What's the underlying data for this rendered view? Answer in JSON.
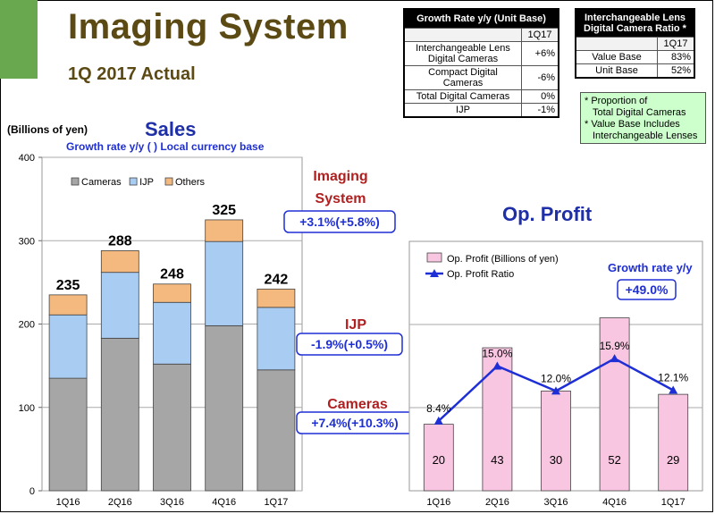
{
  "header": {
    "title": "Imaging System",
    "subtitle": "1Q 2017 Actual"
  },
  "growth_table": {
    "title": "Growth Rate y/y  (Unit Base)",
    "period": "1Q17",
    "rows": [
      {
        "label": "Interchangeable Lens Digital Cameras",
        "value": "+6%"
      },
      {
        "label": "Compact Digital Cameras",
        "value": "-6%"
      },
      {
        "label": "Total Digital Cameras",
        "value": "0%"
      },
      {
        "label": "IJP",
        "value": "-1%"
      }
    ]
  },
  "ratio_table": {
    "title": "Interchangeable Lens Digital Camera Ratio *",
    "period": "1Q17",
    "rows": [
      {
        "label": "Value Base",
        "value": "83%"
      },
      {
        "label": "Unit Base",
        "value": "52%"
      }
    ]
  },
  "note": {
    "line1": "* Proportion of",
    "line2": "Total Digital Cameras",
    "line3": "* Value Base Includes",
    "line4": "Interchangeable Lenses"
  },
  "chart_data": [
    {
      "type": "bar",
      "stacked": true,
      "title": "Sales",
      "unit_label": "(Billions of yen)",
      "subtitle": "Growth rate y/y  ( ) Local currency base",
      "categories": [
        "1Q16",
        "2Q16",
        "3Q16",
        "4Q16",
        "1Q17"
      ],
      "series": [
        {
          "name": "Cameras",
          "values": [
            135,
            183,
            152,
            198,
            145
          ]
        },
        {
          "name": "IJP",
          "values": [
            76,
            79,
            74,
            101,
            75
          ]
        },
        {
          "name": "Others",
          "values": [
            24,
            26,
            22,
            26,
            22
          ]
        }
      ],
      "totals": [
        "235",
        "288",
        "248",
        "325",
        "242"
      ],
      "ylim": [
        0,
        400
      ],
      "yticks": [
        "0",
        "100",
        "200",
        "300",
        "400"
      ],
      "grid": true,
      "legend": "top-left",
      "colors": {
        "Cameras": "#a6a6a6",
        "IJP": "#a9cdf2",
        "Others": "#f4b97e"
      },
      "annotations": [
        {
          "label": "Imaging System",
          "value": "+3.1%(+5.8%)"
        },
        {
          "label": "IJP",
          "value": "-1.9%(+0.5%)"
        },
        {
          "label": "Cameras",
          "value": "+7.4%(+10.3%)"
        }
      ]
    },
    {
      "type": "bar",
      "title": "Op. Profit",
      "categories": [
        "1Q16",
        "2Q16",
        "3Q16",
        "4Q16",
        "1Q17"
      ],
      "series": [
        {
          "name": "Op. Profit (Billions of yen)",
          "values": [
            20,
            43,
            30,
            52,
            29
          ]
        },
        {
          "name": "Op. Profit Ratio",
          "values": [
            8.4,
            15.0,
            12.0,
            15.9,
            12.1
          ],
          "type": "line"
        }
      ],
      "value_labels": [
        "20",
        "43",
        "30",
        "52",
        "29"
      ],
      "ratio_labels": [
        "8.4%",
        "15.0%",
        "12.0%",
        "15.9%",
        "12.1%"
      ],
      "ylim": [
        0,
        75
      ],
      "ratio_ylim": [
        0,
        30
      ],
      "grid": true,
      "legend": "top-left",
      "colors": {
        "bar": "#f9c6e2",
        "line": "#1f2fd6"
      },
      "growth_label": "Growth rate y/y",
      "growth_value": "+49.0%"
    }
  ]
}
